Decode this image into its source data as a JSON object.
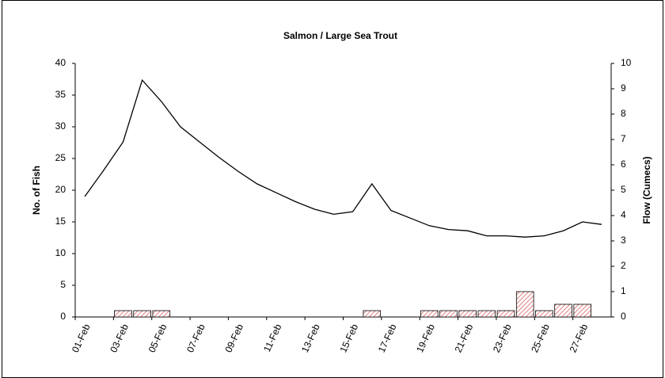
{
  "chart_data": {
    "type": "bar-line",
    "title": "Salmon / Large Sea Trout",
    "ylabel": "No. of Fish",
    "y2label": "Flow (Cumecs)",
    "categories": [
      "01-Feb",
      null,
      "03-Feb",
      null,
      "05-Feb",
      null,
      "07-Feb",
      null,
      "09-Feb",
      null,
      "11-Feb",
      null,
      "13-Feb",
      null,
      "15-Feb",
      null,
      "17-Feb",
      null,
      "19-Feb",
      null,
      "21-Feb",
      null,
      "23-Feb",
      null,
      "25-Feb",
      null,
      "27-Feb",
      null
    ],
    "series": [
      {
        "type": "bar",
        "color": "#f4b8b8",
        "values": [
          0,
          0,
          1,
          1,
          1,
          0,
          0,
          0,
          0,
          0,
          0,
          0,
          0,
          0,
          0,
          1,
          0,
          0,
          1,
          1,
          1,
          1,
          1,
          4,
          1,
          2,
          2,
          0
        ]
      },
      {
        "type": "line",
        "axis": "y2",
        "color": "#000000",
        "values": [
          4.75,
          5.8,
          6.9,
          9.34,
          8.5,
          7.5,
          6.9,
          6.3,
          5.75,
          5.25,
          4.9,
          4.55,
          4.25,
          4.05,
          4.15,
          5.25,
          4.2,
          3.9,
          3.6,
          3.45,
          3.4,
          3.2,
          3.2,
          3.15,
          3.2,
          3.4,
          3.75,
          3.65
        ]
      }
    ],
    "ylim": [
      0,
      40
    ],
    "yticks": [
      0,
      5,
      10,
      15,
      20,
      25,
      30,
      35,
      40
    ],
    "y2lim": [
      0,
      10
    ],
    "y2ticks": [
      0,
      1,
      2,
      3,
      4,
      5,
      6,
      7,
      8,
      9,
      10
    ]
  }
}
